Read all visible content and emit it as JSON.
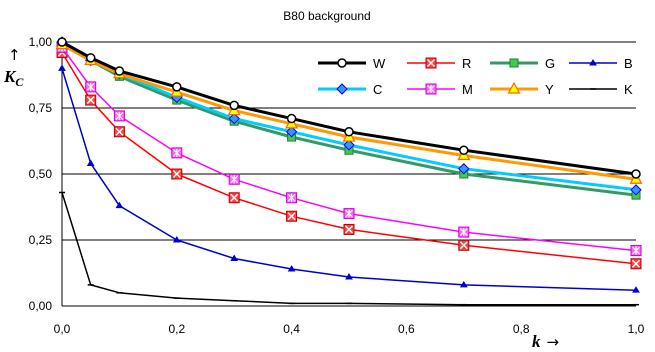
{
  "chart_data": {
    "type": "line",
    "title": "B80 background",
    "xlabel": "k →",
    "ylabel": "↑ K_C",
    "ylabel_arrow": "↑",
    "ylabel_main": "K",
    "ylabel_sub": "C",
    "xlabel_main": "k",
    "xlabel_arrow": "→",
    "xlim": [
      0,
      1
    ],
    "ylim": [
      0,
      1
    ],
    "x_ticks": [
      "0,0",
      "0,2",
      "0,4",
      "0,6",
      "0,8",
      "1,0"
    ],
    "y_ticks": [
      "0,00",
      "0,25",
      "0,50",
      "0,75",
      "1,00"
    ],
    "grid": "horizontal",
    "legend_position": "top-right",
    "x": [
      0,
      0.05,
      0.1,
      0.2,
      0.3,
      0.4,
      0.5,
      0.7,
      1.0
    ],
    "series": [
      {
        "name": "W",
        "color": "#000000",
        "marker": "circle",
        "marker_fill": "#ffffff",
        "marker_stroke": "#000000",
        "width": 3,
        "values": [
          1.0,
          0.94,
          0.89,
          0.83,
          0.76,
          0.71,
          0.66,
          0.59,
          0.5
        ]
      },
      {
        "name": "R",
        "color": "#ff0000",
        "marker": "square-x",
        "marker_fill": "#ff4040",
        "marker_stroke": "#c00000",
        "width": 1.5,
        "values": [
          0.96,
          0.78,
          0.66,
          0.5,
          0.41,
          0.34,
          0.29,
          0.23,
          0.16
        ]
      },
      {
        "name": "G",
        "color": "#339966",
        "marker": "square",
        "marker_fill": "#44cc44",
        "marker_stroke": "#227744",
        "width": 3,
        "values": [
          0.99,
          0.93,
          0.87,
          0.78,
          0.7,
          0.64,
          0.59,
          0.5,
          0.42
        ]
      },
      {
        "name": "B",
        "color": "#0000cc",
        "marker": "triangle-small",
        "marker_fill": "#0000cc",
        "marker_stroke": "#0000cc",
        "width": 1.5,
        "values": [
          0.9,
          0.54,
          0.38,
          0.25,
          0.18,
          0.14,
          0.11,
          0.08,
          0.06
        ]
      },
      {
        "name": "C",
        "color": "#00ccff",
        "marker": "diamond",
        "marker_fill": "#3399ff",
        "marker_stroke": "#0000ff",
        "width": 3,
        "values": [
          1.0,
          0.93,
          0.88,
          0.79,
          0.71,
          0.66,
          0.61,
          0.52,
          0.44
        ]
      },
      {
        "name": "M",
        "color": "#ff00ff",
        "marker": "square-star",
        "marker_fill": "#ff66ff",
        "marker_stroke": "#cc00cc",
        "width": 1.5,
        "values": [
          0.98,
          0.83,
          0.72,
          0.58,
          0.48,
          0.41,
          0.35,
          0.28,
          0.21
        ]
      },
      {
        "name": "Y",
        "color": "#ff9900",
        "marker": "triangle",
        "marker_fill": "#ffff00",
        "marker_stroke": "#ff6600",
        "width": 3,
        "values": [
          0.99,
          0.93,
          0.88,
          0.81,
          0.74,
          0.69,
          0.64,
          0.57,
          0.48
        ]
      },
      {
        "name": "K",
        "color": "#000000",
        "marker": "dash",
        "marker_fill": "#000000",
        "marker_stroke": "#000000",
        "width": 1.5,
        "values": [
          0.43,
          0.08,
          0.05,
          0.03,
          0.02,
          0.01,
          0.01,
          0.005,
          0.005
        ]
      }
    ]
  }
}
